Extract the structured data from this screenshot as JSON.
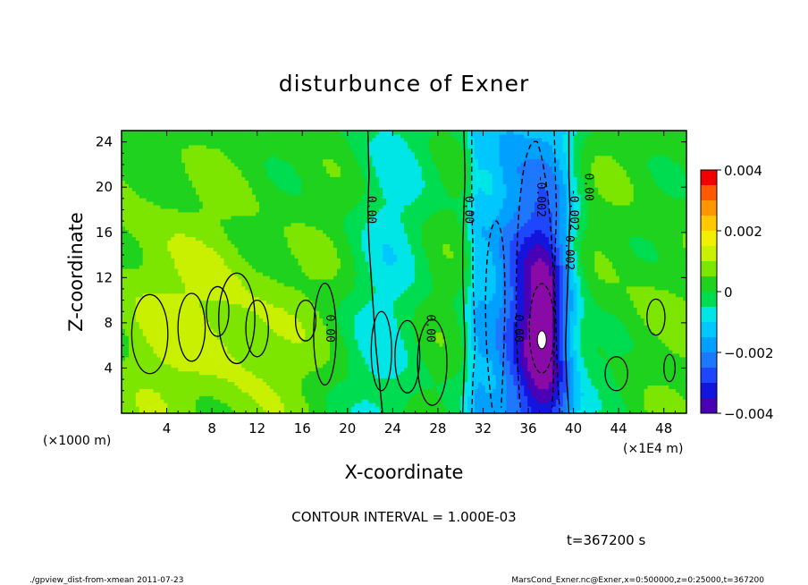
{
  "chart_data": {
    "type": "heatmap",
    "title": "disturbunce of Exner",
    "xlabel": "X-coordinate",
    "ylabel": "Z-coordinate",
    "x_unit_note": "(×1E4 m)",
    "y_unit_note": "(×1000 m)",
    "xlim": [
      0,
      50
    ],
    "ylim": [
      0,
      25
    ],
    "x_ticks": [
      4,
      8,
      12,
      16,
      20,
      24,
      28,
      32,
      36,
      40,
      44,
      48
    ],
    "y_ticks": [
      4,
      8,
      12,
      16,
      20,
      24
    ],
    "x_tick_labels": [
      "4",
      "8",
      "12",
      "16",
      "20",
      "24",
      "28",
      "32",
      "36",
      "40",
      "44",
      "48"
    ],
    "y_tick_labels": [
      "4",
      "8",
      "12",
      "16",
      "20",
      "24"
    ],
    "color_range": [
      -0.004,
      0.004
    ],
    "colorbar_tick_labels": [
      "0.004",
      "0.002",
      "0",
      "−0.002",
      "−0.004"
    ],
    "colorbar_levels": [
      -0.004,
      -0.0035,
      -0.003,
      -0.0025,
      -0.002,
      -0.0015,
      -0.001,
      -0.0005,
      0,
      0.0005,
      0.001,
      0.0015,
      0.002,
      0.0025,
      0.003,
      0.0035,
      0.004
    ],
    "colorbar_colors": [
      "#8a0aa8",
      "#4a00b4",
      "#1414dc",
      "#1e46ff",
      "#1e78ff",
      "#00a0ff",
      "#00c8ff",
      "#00e6e6",
      "#00dc50",
      "#1ed21e",
      "#7ce600",
      "#c8f000",
      "#f0f000",
      "#ffc800",
      "#ff9600",
      "#ff5a00",
      "#f00000",
      "#ff8c8c"
    ],
    "contour_interval": "CONTOUR INTERVAL = 1.000E-03",
    "contour_labels": [
      "0.00",
      "0.00",
      "0.00",
      "0.00",
      "0.00",
      "-0.002",
      "-0.002",
      "-0.002",
      "0.00"
    ],
    "depression_center": {
      "x": 37.2,
      "z": 7,
      "min": -0.0042
    },
    "time_label": "t=367200 s"
  },
  "footer": {
    "left": "./gpview_dist-from-xmean   2011-07-23",
    "right": "MarsCond_Exner.nc@Exner,x=0:500000,z=0:25000,t=367200"
  }
}
